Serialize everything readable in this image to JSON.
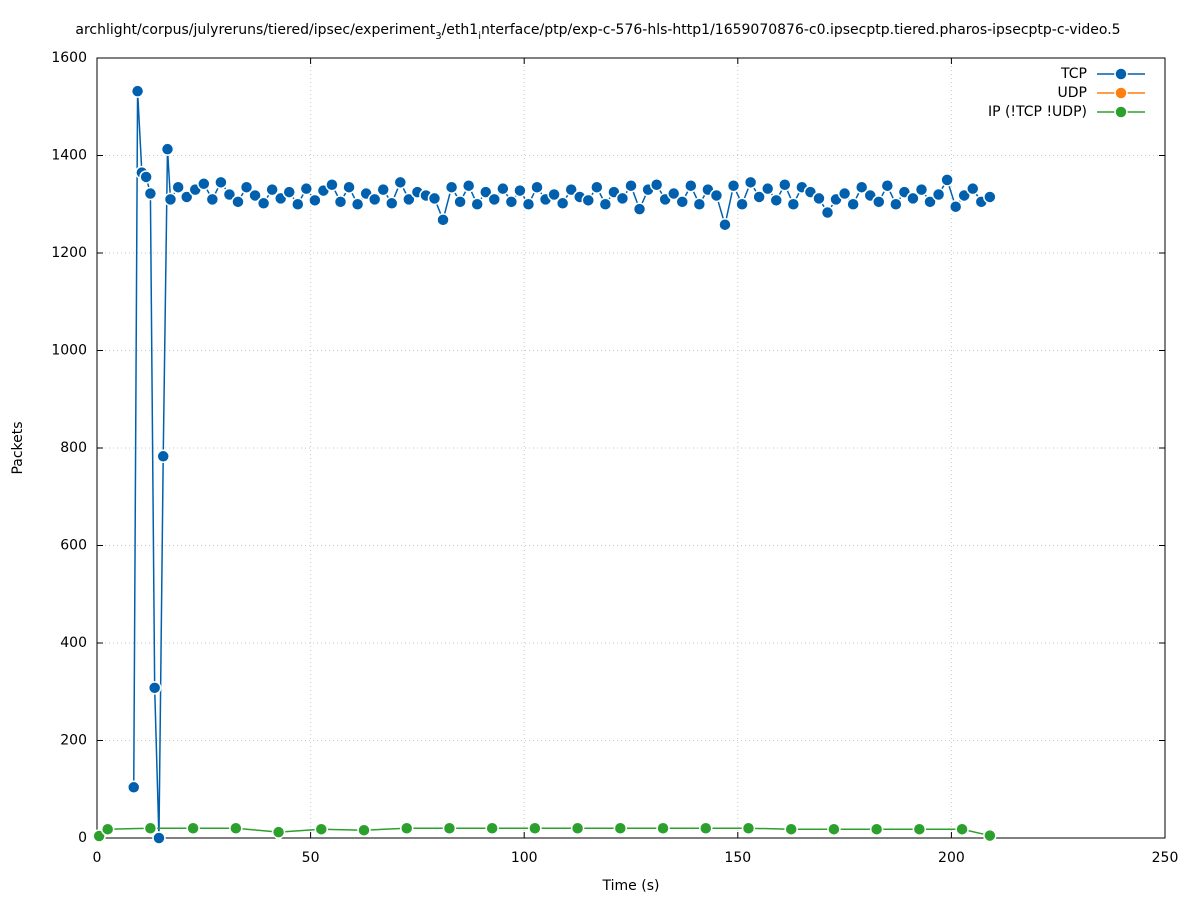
{
  "chart_data": {
    "type": "line",
    "title": [
      "archlight/corpus/julyreruns/tiered/ipsec/experiment",
      "3",
      "/eth1",
      "i",
      "nterface/ptp/exp-c-576-hls-http1/1659070876-c0.ipsecptp.tiered.pharos-ipsecptp-c-video.5"
    ],
    "x_label": "Time (s)",
    "y_label": "Packets",
    "xlim": [
      0,
      250
    ],
    "xticks": [
      0,
      50,
      100,
      150,
      200,
      250
    ],
    "ylim": [
      0,
      1600
    ],
    "yticks": [
      0,
      200,
      400,
      600,
      800,
      1000,
      1200,
      1400,
      1600
    ],
    "grid": true,
    "legend": "top-right",
    "series": [
      {
        "name": "TCP",
        "color": "#0060ad",
        "x": [
          8.6,
          9.5,
          10.5,
          11.5,
          12.5,
          13.5,
          14.5,
          15.5,
          16.5,
          17.2,
          19,
          21,
          23,
          25,
          27,
          29,
          31,
          33,
          35,
          37,
          39,
          41,
          43,
          45,
          47,
          49,
          51,
          53,
          55,
          57,
          59,
          61,
          63,
          65,
          67,
          69,
          71,
          73,
          75,
          77,
          79,
          81,
          83,
          85,
          87,
          89,
          91,
          93,
          95,
          97,
          99,
          101,
          103,
          105,
          107,
          109,
          111,
          113,
          115,
          117,
          119,
          121,
          123,
          125,
          127,
          129,
          131,
          133,
          135,
          137,
          139,
          141,
          143,
          145,
          147,
          149,
          151,
          153,
          155,
          157,
          159,
          161,
          163,
          165,
          167,
          169,
          171,
          173,
          175,
          177,
          179,
          181,
          183,
          185,
          187,
          189,
          191,
          193,
          195,
          197,
          199,
          201,
          203,
          205,
          207,
          209
        ],
        "values": [
          104,
          1532,
          1365,
          1356,
          1322,
          308,
          0,
          783,
          1413,
          1310,
          1335,
          1315,
          1330,
          1342,
          1310,
          1345,
          1320,
          1305,
          1335,
          1318,
          1302,
          1330,
          1312,
          1325,
          1300,
          1332,
          1308,
          1328,
          1340,
          1305,
          1335,
          1300,
          1322,
          1310,
          1330,
          1302,
          1345,
          1310,
          1325,
          1318,
          1312,
          1268,
          1335,
          1305,
          1338,
          1300,
          1325,
          1310,
          1332,
          1305,
          1328,
          1300,
          1335,
          1310,
          1320,
          1302,
          1330,
          1315,
          1308,
          1335,
          1300,
          1325,
          1312,
          1338,
          1290,
          1330,
          1340,
          1310,
          1322,
          1305,
          1338,
          1300,
          1330,
          1318,
          1258,
          1338,
          1300,
          1345,
          1315,
          1332,
          1308,
          1340,
          1300,
          1335,
          1325,
          1312,
          1283,
          1310,
          1322,
          1300,
          1335,
          1318,
          1305,
          1338,
          1300,
          1325,
          1312,
          1330,
          1305,
          1320,
          1350,
          1295,
          1318,
          1332,
          1305,
          1315
        ]
      },
      {
        "name": "UDP",
        "color": "#ff7f0e",
        "x": [],
        "values": []
      },
      {
        "name": "IP (!TCP  !UDP)",
        "color": "#2ca02c",
        "x": [
          0.5,
          2.5,
          12.5,
          22.5,
          32.5,
          42.5,
          52.5,
          62.5,
          72.5,
          82.5,
          92.5,
          102.5,
          112.5,
          122.5,
          132.5,
          142.5,
          152.5,
          162.5,
          172.5,
          182.5,
          192.5,
          202.5,
          209
        ],
        "values": [
          4,
          18,
          20,
          20,
          20,
          12,
          18,
          16,
          20,
          20,
          20,
          20,
          20,
          20,
          20,
          20,
          20,
          18,
          18,
          18,
          18,
          18,
          5
        ]
      }
    ]
  }
}
